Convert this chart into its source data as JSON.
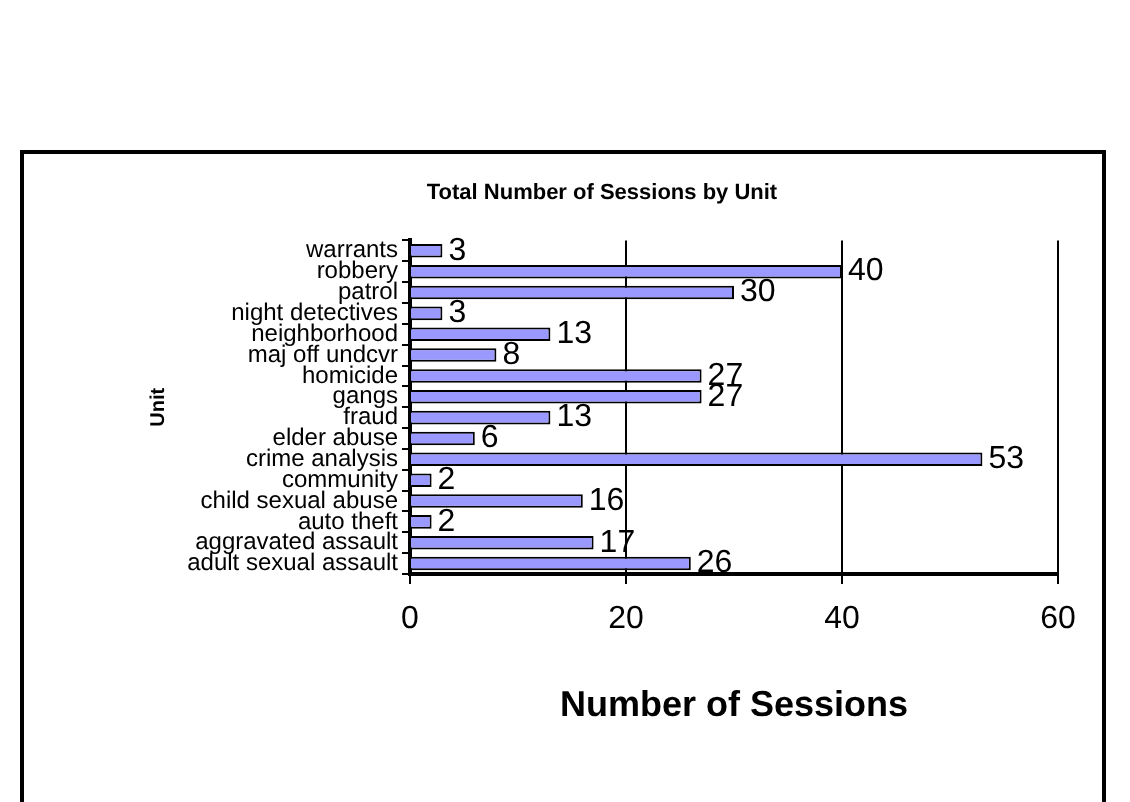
{
  "chart_data": {
    "type": "bar",
    "orientation": "horizontal",
    "title": "Total Number of Sessions by Unit",
    "xlabel": "Number of Sessions",
    "ylabel": "Unit",
    "categories": [
      "warrants",
      "robbery",
      "patrol",
      "night detectives",
      "neighborhood",
      "maj off undcvr",
      "homicide",
      "gangs",
      "fraud",
      "elder abuse",
      "crime analysis",
      "community",
      "child sexual abuse",
      "auto theft",
      "aggravated assault",
      "adult sexual assault"
    ],
    "values": [
      3,
      40,
      30,
      3,
      13,
      8,
      27,
      27,
      13,
      6,
      53,
      2,
      16,
      2,
      17,
      26
    ],
    "color": "#9999ff",
    "xlim": [
      0,
      60
    ],
    "xticks": [
      0,
      20,
      40,
      60
    ],
    "grid": "x",
    "legend": false,
    "data_labels": true
  }
}
